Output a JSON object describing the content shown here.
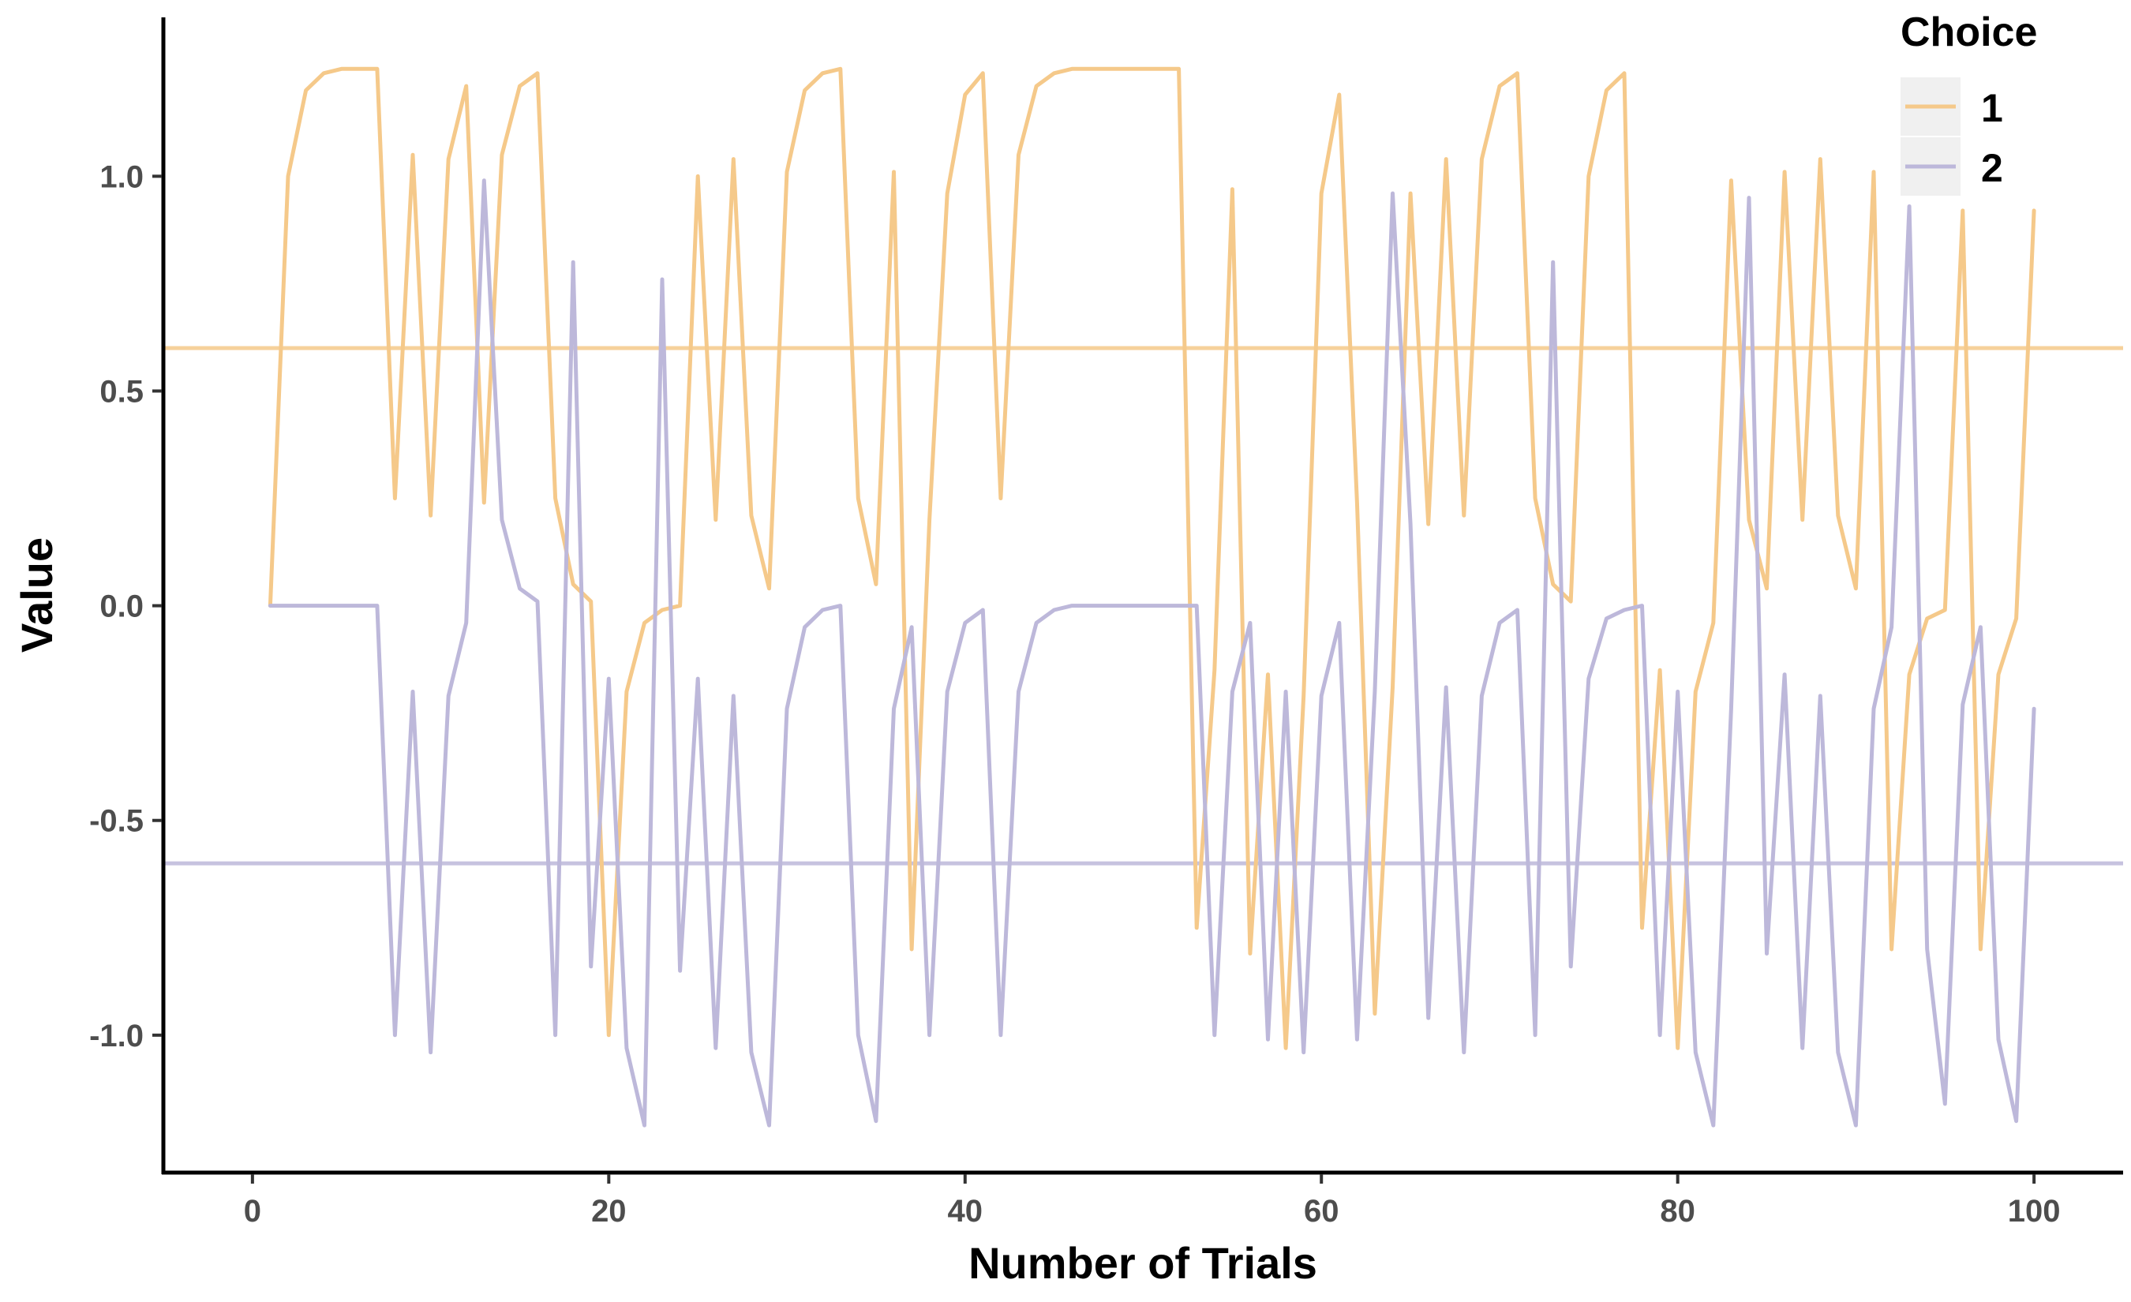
{
  "chart_data": {
    "type": "line",
    "title": "",
    "xlabel": "Number of Trials",
    "ylabel": "Value",
    "xlim": [
      -5,
      105
    ],
    "ylim": [
      -1.32,
      1.37
    ],
    "x_ticks": [
      0,
      20,
      40,
      60,
      80,
      100
    ],
    "x_tick_labels": [
      "0",
      "20",
      "40",
      "60",
      "80",
      "100"
    ],
    "y_ticks": [
      -1.0,
      -0.5,
      0.0,
      0.5,
      1.0
    ],
    "y_tick_labels": [
      "-1.0",
      "-0.5",
      "0.0",
      "0.5",
      "1.0"
    ],
    "grid": false,
    "legend": {
      "title": "Choice",
      "position": "top-right"
    },
    "reference_lines": [
      {
        "series": "1",
        "y": 0.6
      },
      {
        "series": "2",
        "y": -0.6
      }
    ],
    "series": [
      {
        "name": "1",
        "color": "#f5c98a",
        "x": [
          1,
          2,
          3,
          4,
          5,
          6,
          7,
          8,
          9,
          10,
          11,
          12,
          13,
          14,
          15,
          16,
          17,
          18,
          19,
          20,
          21,
          22,
          23,
          24,
          25,
          26,
          27,
          28,
          29,
          30,
          31,
          32,
          33,
          34,
          35,
          36,
          37,
          38,
          39,
          40,
          41,
          42,
          43,
          44,
          45,
          46,
          47,
          48,
          49,
          50,
          51,
          52,
          53,
          54,
          55,
          56,
          57,
          58,
          59,
          60,
          61,
          62,
          63,
          64,
          65,
          66,
          67,
          68,
          69,
          70,
          71,
          72,
          73,
          74,
          75,
          76,
          77,
          78,
          79,
          80,
          81,
          82,
          83,
          84,
          85,
          86,
          87,
          88,
          89,
          90,
          91,
          92,
          93,
          94,
          95,
          96,
          97,
          98,
          99,
          100
        ],
        "values": [
          0.0,
          1.0,
          1.2,
          1.24,
          1.25,
          1.25,
          1.25,
          0.25,
          1.05,
          0.21,
          1.04,
          1.21,
          0.24,
          1.05,
          1.21,
          1.24,
          0.25,
          0.05,
          0.01,
          -1.0,
          -0.2,
          -0.04,
          -0.01,
          0.0,
          1.0,
          0.2,
          1.04,
          0.21,
          0.04,
          1.01,
          1.2,
          1.24,
          1.25,
          0.25,
          0.05,
          1.01,
          -0.8,
          0.2,
          0.96,
          1.19,
          1.24,
          0.25,
          1.05,
          1.21,
          1.24,
          1.25,
          1.25,
          1.25,
          1.25,
          1.25,
          1.25,
          1.25,
          -0.75,
          -0.15,
          0.97,
          -0.81,
          -0.16,
          -1.03,
          -0.21,
          0.96,
          1.19,
          0.24,
          -0.95,
          -0.19,
          0.96,
          0.19,
          1.04,
          0.21,
          1.04,
          1.21,
          1.24,
          0.25,
          0.05,
          0.01,
          1.0,
          1.2,
          1.24,
          -0.75,
          -0.15,
          -1.03,
          -0.2,
          -0.04,
          0.99,
          0.2,
          0.04,
          1.01,
          0.2,
          1.04,
          0.21,
          0.04,
          1.01,
          -0.8,
          -0.16,
          -0.03,
          -0.01,
          0.92,
          -0.8,
          -0.16,
          -0.03,
          0.92
        ]
      },
      {
        "name": "2",
        "color": "#bdb8da",
        "x": [
          1,
          2,
          3,
          4,
          5,
          6,
          7,
          8,
          9,
          10,
          11,
          12,
          13,
          14,
          15,
          16,
          17,
          18,
          19,
          20,
          21,
          22,
          23,
          24,
          25,
          26,
          27,
          28,
          29,
          30,
          31,
          32,
          33,
          34,
          35,
          36,
          37,
          38,
          39,
          40,
          41,
          42,
          43,
          44,
          45,
          46,
          47,
          48,
          49,
          50,
          51,
          52,
          53,
          54,
          55,
          56,
          57,
          58,
          59,
          60,
          61,
          62,
          63,
          64,
          65,
          66,
          67,
          68,
          69,
          70,
          71,
          72,
          73,
          74,
          75,
          76,
          77,
          78,
          79,
          80,
          81,
          82,
          83,
          84,
          85,
          86,
          87,
          88,
          89,
          90,
          91,
          92,
          93,
          94,
          95,
          96,
          97,
          98,
          99,
          100
        ],
        "values": [
          0.0,
          0.0,
          0.0,
          0.0,
          0.0,
          0.0,
          0.0,
          -1.0,
          -0.2,
          -1.04,
          -0.21,
          -0.04,
          0.99,
          0.2,
          0.04,
          0.01,
          -1.0,
          0.8,
          -0.84,
          -0.17,
          -1.03,
          -1.21,
          0.76,
          -0.85,
          -0.17,
          -1.03,
          -0.21,
          -1.04,
          -1.21,
          -0.24,
          -0.05,
          -0.01,
          0.0,
          -1.0,
          -1.2,
          -0.24,
          -0.05,
          -1.0,
          -0.2,
          -0.04,
          -0.01,
          -1.0,
          -0.2,
          -0.04,
          -0.01,
          0.0,
          0.0,
          0.0,
          0.0,
          0.0,
          0.0,
          0.0,
          0.0,
          -1.0,
          -0.2,
          -0.04,
          -1.01,
          -0.2,
          -1.04,
          -0.21,
          -0.04,
          -1.01,
          -0.2,
          0.96,
          0.19,
          -0.96,
          -0.19,
          -1.04,
          -0.21,
          -0.04,
          -0.01,
          -1.0,
          0.8,
          -0.84,
          -0.17,
          -0.03,
          -0.01,
          0.0,
          -1.0,
          -0.2,
          -1.04,
          -1.21,
          -0.24,
          0.95,
          -0.81,
          -0.16,
          -1.03,
          -0.21,
          -1.04,
          -1.21,
          -0.24,
          -0.05,
          0.93,
          -0.8,
          -1.16,
          -0.23,
          -0.05,
          -1.01,
          -1.2,
          -0.24
        ]
      }
    ]
  }
}
